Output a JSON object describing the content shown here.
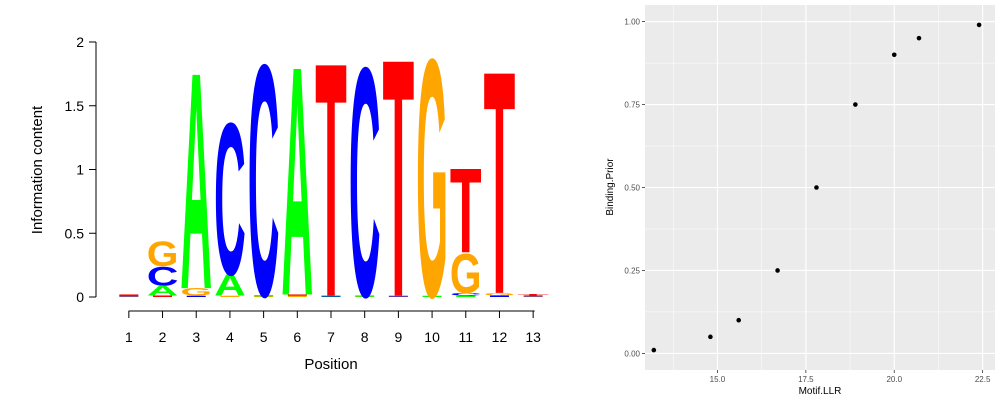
{
  "chart_data": [
    {
      "type": "sequence-logo",
      "xlabel": "Position",
      "ylabel": "Information content",
      "ylim": [
        0,
        2
      ],
      "y_ticks": [
        {
          "value": 0,
          "label": "0"
        },
        {
          "value": 0.5,
          "label": "0.5"
        },
        {
          "value": 1,
          "label": "1"
        },
        {
          "value": 1.5,
          "label": "1.5"
        },
        {
          "value": 2,
          "label": "2"
        }
      ],
      "positions": [
        "1",
        "2",
        "3",
        "4",
        "5",
        "6",
        "7",
        "8",
        "9",
        "10",
        "11",
        "12",
        "13"
      ],
      "letter_colors": {
        "A": "#00ff00",
        "C": "#0000ff",
        "G": "#ffa500",
        "T": "#ff0000"
      },
      "columns": [
        [
          {
            "base": "G",
            "height": 0.004
          },
          {
            "base": "C",
            "height": 0.004
          },
          {
            "base": "T",
            "height": 0.012
          }
        ],
        [
          {
            "base": "T",
            "height": 0.012
          },
          {
            "base": "A",
            "height": 0.08
          },
          {
            "base": "C",
            "height": 0.15
          },
          {
            "base": "G",
            "height": 0.2
          }
        ],
        [
          {
            "base": "C",
            "height": 0.01
          },
          {
            "base": "G",
            "height": 0.06
          },
          {
            "base": "A",
            "height": 1.74
          }
        ],
        [
          {
            "base": "G",
            "height": 0.01
          },
          {
            "base": "A",
            "height": 0.17
          },
          {
            "base": "C",
            "height": 1.22
          }
        ],
        [
          {
            "base": "G",
            "height": 0.005
          },
          {
            "base": "A",
            "height": 0.01
          },
          {
            "base": "C",
            "height": 1.86
          }
        ],
        [
          {
            "base": "G",
            "height": 0.01
          },
          {
            "base": "T",
            "height": 0.01
          },
          {
            "base": "A",
            "height": 1.84
          }
        ],
        [
          {
            "base": "C",
            "height": 0.005
          },
          {
            "base": "A",
            "height": 0.005
          },
          {
            "base": "T",
            "height": 1.88
          }
        ],
        [
          {
            "base": "A",
            "height": 0.006
          },
          {
            "base": "G",
            "height": 0.006
          },
          {
            "base": "C",
            "height": 1.84
          }
        ],
        [
          {
            "base": "C",
            "height": 0.005
          },
          {
            "base": "G",
            "height": 0.005
          },
          {
            "base": "T",
            "height": 1.91
          }
        ],
        [
          {
            "base": "A",
            "height": 0.01
          },
          {
            "base": "G",
            "height": 1.91
          }
        ],
        [
          {
            "base": "A",
            "height": 0.012
          },
          {
            "base": "C",
            "height": 0.02
          },
          {
            "base": "G",
            "height": 0.32
          },
          {
            "base": "T",
            "height": 0.68
          }
        ],
        [
          {
            "base": "C",
            "height": 0.012
          },
          {
            "base": "G",
            "height": 0.02
          },
          {
            "base": "T",
            "height": 1.79
          }
        ],
        [
          {
            "base": "G",
            "height": 0.004
          },
          {
            "base": "C",
            "height": 0.004
          },
          {
            "base": "T",
            "height": 0.014
          }
        ]
      ]
    },
    {
      "type": "scatter",
      "xlabel": "Motif.LLR",
      "ylabel": "Binding.Prior",
      "xlim": [
        12.95,
        22.85
      ],
      "ylim": [
        -0.05,
        1.05
      ],
      "x_ticks": [
        {
          "value": 15,
          "label": "15.0"
        },
        {
          "value": 17.5,
          "label": "17.5"
        },
        {
          "value": 20,
          "label": "20.0"
        },
        {
          "value": 22.5,
          "label": "22.5"
        }
      ],
      "y_ticks": [
        {
          "value": 0,
          "label": "0.00"
        },
        {
          "value": 0.25,
          "label": "0.25"
        },
        {
          "value": 0.5,
          "label": "0.50"
        },
        {
          "value": 0.75,
          "label": "0.75"
        },
        {
          "value": 1,
          "label": "1.00"
        }
      ],
      "points": [
        {
          "x": 13.2,
          "y": 0.01
        },
        {
          "x": 14.8,
          "y": 0.05
        },
        {
          "x": 15.6,
          "y": 0.1
        },
        {
          "x": 16.7,
          "y": 0.25
        },
        {
          "x": 17.8,
          "y": 0.5
        },
        {
          "x": 18.9,
          "y": 0.75
        },
        {
          "x": 20.0,
          "y": 0.9
        },
        {
          "x": 20.7,
          "y": 0.95
        },
        {
          "x": 22.4,
          "y": 0.99
        }
      ],
      "panel_color": "#ebebeb",
      "grid_color": "#ffffff",
      "point_color": "#000000"
    }
  ]
}
